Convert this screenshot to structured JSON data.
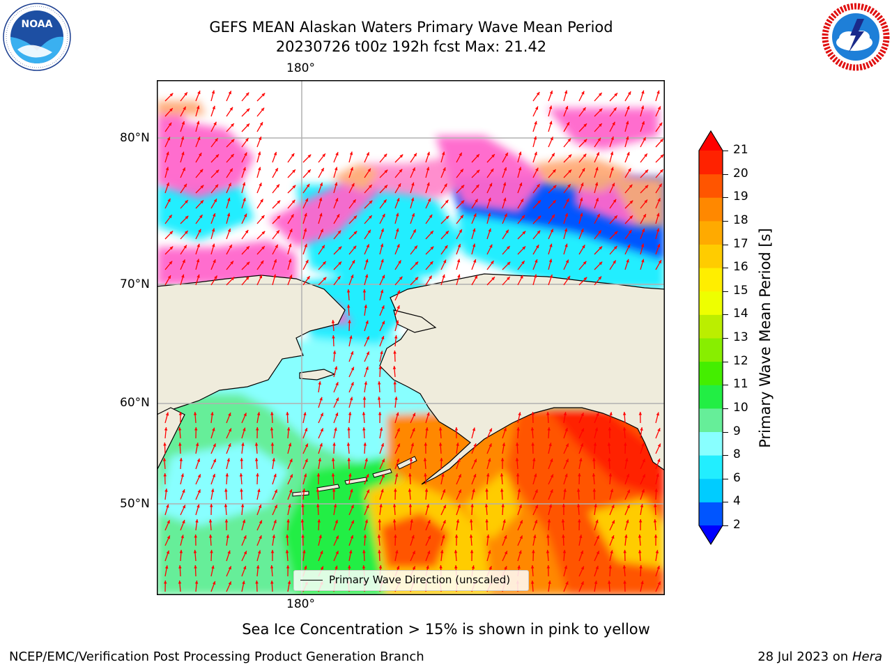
{
  "header": {
    "title_line1": "GEFS MEAN Alaskan Waters Primary Wave Mean Period",
    "title_line2": "20230726 t00z 192h fcst   Max: 21.42"
  },
  "logos": {
    "left": {
      "name": "noaa-logo",
      "text": "NOAA",
      "ring_text": "NATIONAL OCEANIC AND ATMOSPHERIC ADMINISTRATION · U.S. DEPARTMENT OF COMMERCE"
    },
    "right": {
      "name": "nws-logo",
      "ring_text": "NATIONAL WEATHER SERVICE"
    }
  },
  "map": {
    "lon_label": "180°",
    "lat_labels": [
      "80°N",
      "70°N",
      "60°N",
      "50°N"
    ],
    "legend_label": "Primary Wave Direction (unscaled)",
    "colors": {
      "land": "#efecdc",
      "arrow": "#ff0000",
      "grid": "#b0b0b0",
      "ice_pink": "#ff66cc"
    }
  },
  "colorbar": {
    "label": "Primary Wave Mean Period [s]",
    "ticks": [
      "2",
      "4",
      "6",
      "8",
      "9",
      "10",
      "11",
      "12",
      "13",
      "14",
      "15",
      "16",
      "17",
      "18",
      "19",
      "20",
      "21"
    ],
    "colors": [
      "#0055ff",
      "#00ccff",
      "#22eeff",
      "#88ffff",
      "#66ee99",
      "#22ee44",
      "#44ee00",
      "#88ee00",
      "#bbee00",
      "#eeff00",
      "#ffee00",
      "#ffcc00",
      "#ffaa00",
      "#ff8800",
      "#ff5500",
      "#ff2200"
    ],
    "under_color": "#0000ff",
    "over_color": "#ff0000"
  },
  "bottom_note": "Sea Ice Concentration > 15% is shown in pink to yellow",
  "footer": {
    "left": "NCEP/EMC/Verification Post Processing Product Generation Branch",
    "date": "28 Jul 2023 on ",
    "host": "Hera"
  }
}
